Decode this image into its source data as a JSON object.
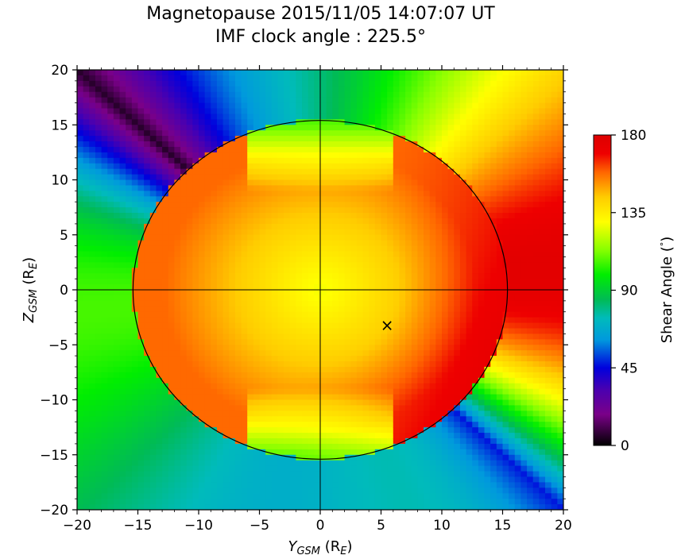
{
  "chart_data": {
    "type": "heatmap",
    "title": "Magnetopause 2015/11/05 14:07:07 UT",
    "subtitle": "IMF clock angle : 225.5°",
    "xlabel": {
      "main": "Y",
      "sub": "GSM",
      "unit_open": " (R",
      "unit_sub": "E",
      "unit_close": ")"
    },
    "ylabel": {
      "main": "Z",
      "sub": "GSM",
      "unit_open": " (R",
      "unit_sub": "E",
      "unit_close": ")"
    },
    "xlim": [
      -20,
      20
    ],
    "ylim": [
      -20,
      20
    ],
    "xticks": [
      -20,
      -15,
      -10,
      -5,
      0,
      5,
      10,
      15,
      20
    ],
    "yticks": [
      -20,
      -15,
      -10,
      -5,
      0,
      5,
      10,
      15,
      20
    ],
    "xtick_labels": [
      "−20",
      "−15",
      "−10",
      "−5",
      "0",
      "5",
      "10",
      "15",
      "20"
    ],
    "ytick_labels": [
      "−20",
      "−15",
      "−10",
      "−5",
      "0",
      "5",
      "10",
      "15",
      "20"
    ],
    "magnetopause_boundary": {
      "type": "ellipse",
      "center": [
        0,
        0
      ],
      "radius_y": 15.4,
      "radius_z": 15.4
    },
    "colorbar": {
      "label": "Shear Angle (°)",
      "label_main": "Shear Angle (",
      "label_unit": "°",
      "label_close": ")",
      "min": 0,
      "max": 180,
      "ticks": [
        0,
        45,
        90,
        135,
        180
      ],
      "tick_labels": [
        "0",
        "45",
        "90",
        "135",
        "180"
      ],
      "colormap": "nipy_spectral"
    },
    "marker": {
      "symbol": "×",
      "x": 5.5,
      "y": -3.2
    },
    "imf_clock_angle_deg": 225.5
  }
}
